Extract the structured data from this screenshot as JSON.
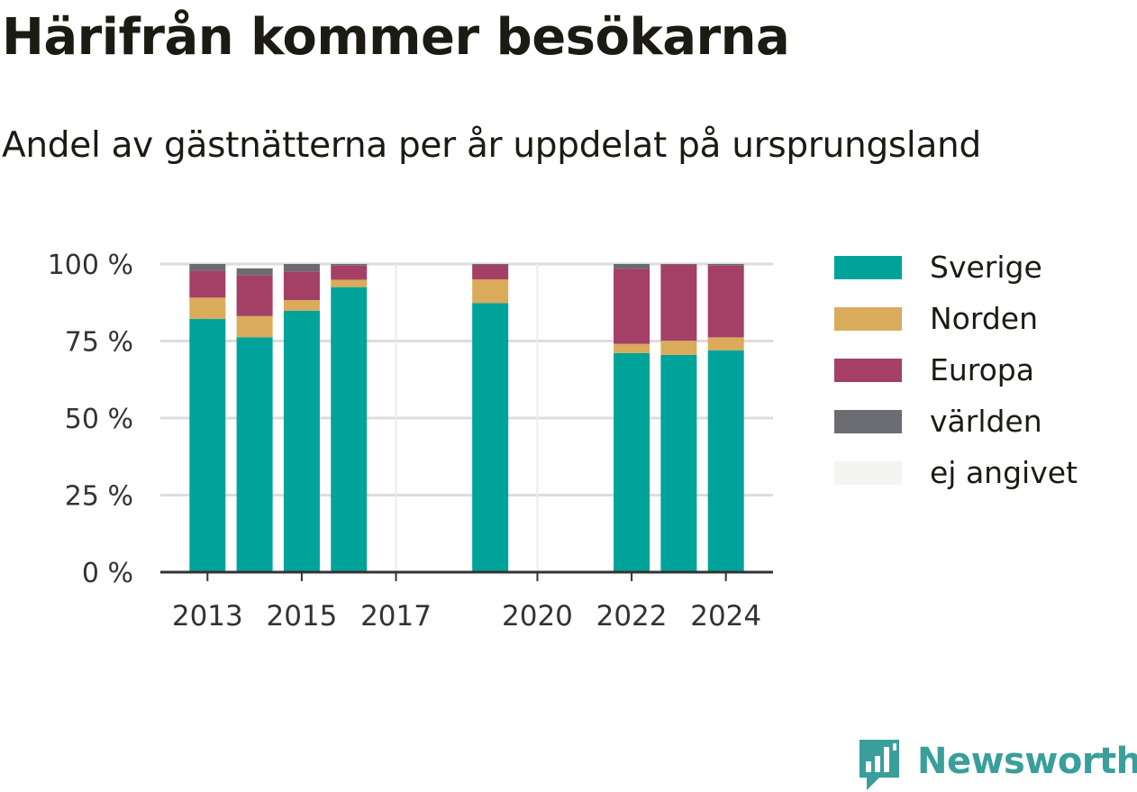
{
  "title": "Härifrån kommer besökarna",
  "subtitle": "Andel av gästnätterna per år uppdelat på ursprungsland",
  "brand": {
    "name": "Newsworthy",
    "icon": "newsworthy-logo-icon",
    "color": "#3a9e9a"
  },
  "chart_data": {
    "type": "bar",
    "stacked": true,
    "x": [
      2013,
      2014,
      2015,
      2016,
      2019,
      2022,
      2023,
      2024
    ],
    "xticks": [
      2013,
      2015,
      2017,
      2020,
      2022,
      2024
    ],
    "xlim": [
      2012,
      2025
    ],
    "yticks": [
      0,
      25,
      50,
      75,
      100
    ],
    "ytick_labels": [
      "0 %",
      "25 %",
      "50 %",
      "75 %",
      "100 %"
    ],
    "ylim": [
      0,
      100
    ],
    "grid": true,
    "legend_position": "right",
    "series": [
      {
        "name": "Sverige",
        "color": "#00a39a",
        "values": [
          82.2,
          76.2,
          84.8,
          92.5,
          87.3,
          71.1,
          70.5,
          72.0
        ]
      },
      {
        "name": "Norden",
        "color": "#d9ab5a",
        "values": [
          6.9,
          6.9,
          3.5,
          2.4,
          7.7,
          3.0,
          4.6,
          4.2
        ]
      },
      {
        "name": "Europa",
        "color": "#a43f66",
        "values": [
          8.8,
          13.2,
          9.3,
          4.6,
          4.7,
          24.4,
          24.6,
          23.3
        ]
      },
      {
        "name": "världen",
        "color": "#6b6b72",
        "values": [
          2.1,
          2.3,
          2.4,
          0.5,
          0.3,
          1.5,
          0.3,
          0.5
        ]
      },
      {
        "name": "ej angivet",
        "color": "#f4f4f2",
        "values": [
          0,
          0,
          0,
          0,
          0,
          0,
          0,
          0
        ]
      }
    ]
  }
}
